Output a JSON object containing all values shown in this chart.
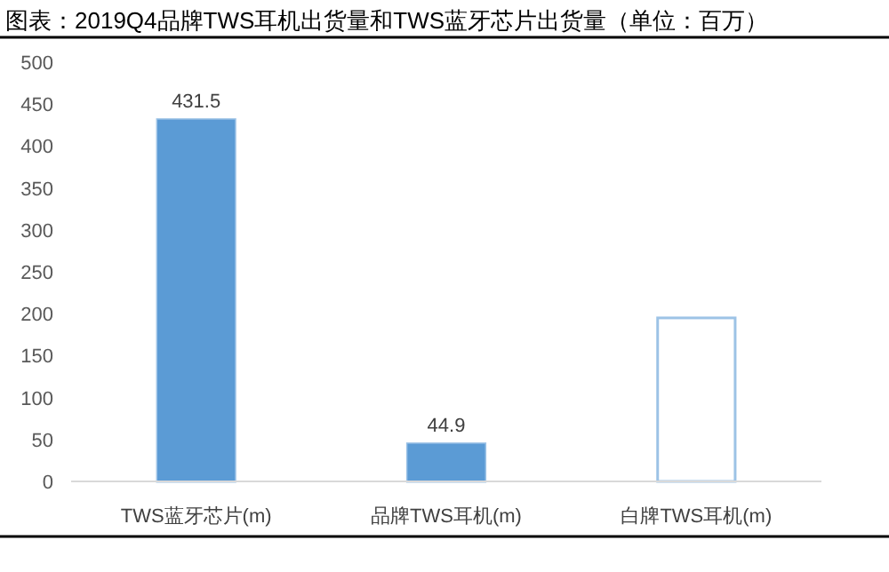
{
  "chart_data": {
    "type": "bar",
    "title": "图表：2019Q4品牌TWS耳机出货量和TWS蓝牙芯片出货量（单位：百万）",
    "categories": [
      "TWS蓝牙芯片(m)",
      "品牌TWS耳机(m)",
      "白牌TWS耳机(m)"
    ],
    "values": [
      431.5,
      44.9,
      195
    ],
    "value_labels": [
      "431.5",
      "44.9",
      null
    ],
    "colors": [
      "#5b9bd5",
      "#5b9bd5",
      "#ffffff"
    ],
    "ylim": [
      0,
      500
    ],
    "yticks": [
      0,
      50,
      100,
      150,
      200,
      250,
      300,
      350,
      400,
      450,
      500
    ],
    "grid": false
  }
}
